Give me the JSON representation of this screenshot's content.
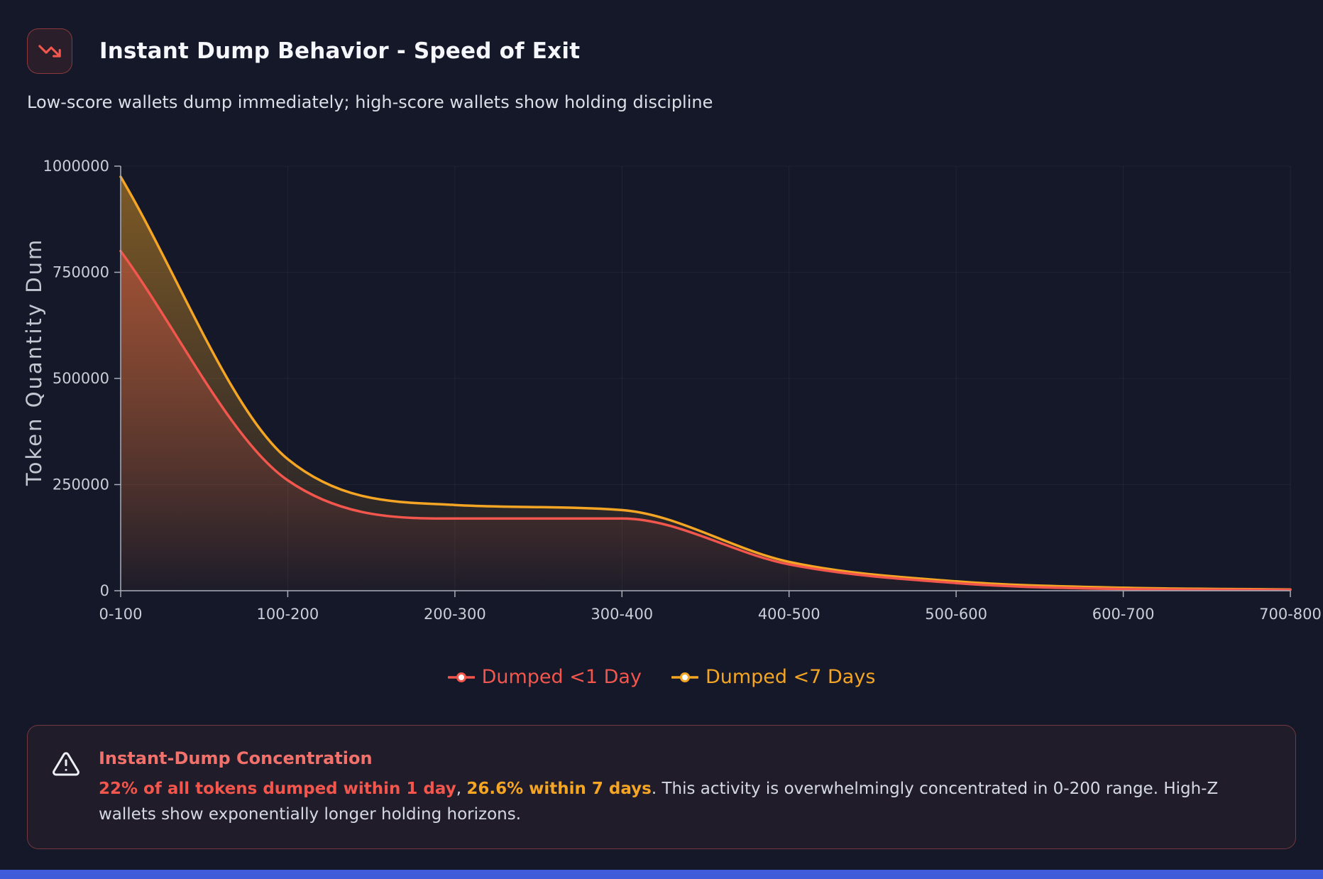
{
  "header": {
    "title": "Instant Dump Behavior - Speed of Exit",
    "subtitle": "Low-score wallets dump immediately; high-score wallets show holding discipline",
    "icon": "trending-down-icon"
  },
  "chart_data": {
    "type": "area",
    "title": "Instant Dump Behavior - Speed of Exit",
    "categories": [
      "0-100",
      "100-200",
      "200-300",
      "300-400",
      "400-500",
      "500-600",
      "600-700",
      "700-800"
    ],
    "xlabel": "",
    "ylabel": "Token Quantity Dum",
    "ylim": [
      0,
      1000000
    ],
    "y_ticks": [
      0,
      250000,
      500000,
      750000,
      1000000
    ],
    "grid": true,
    "legend_position": "bottom",
    "series": [
      {
        "name": "Dumped <1 Day",
        "color": "#f2564c",
        "values": [
          800000,
          260000,
          170000,
          170000,
          62000,
          18000,
          4000,
          2000
        ]
      },
      {
        "name": "Dumped <7 Days",
        "color": "#f5a524",
        "values": [
          975000,
          310000,
          202000,
          190000,
          68000,
          22000,
          7000,
          3000
        ]
      }
    ]
  },
  "alert": {
    "icon": "warning-triangle-icon",
    "title": "Instant-Dump Concentration",
    "segments": [
      {
        "text": "22% of all tokens dumped within 1 day",
        "style": "red-bold"
      },
      {
        "text": ", ",
        "style": "normal"
      },
      {
        "text": "26.6% within 7 days",
        "style": "orange-bold"
      },
      {
        "text": ". This activity is overwhelmingly concentrated in 0-200 range. High-Z wallets show exponentially longer holding horizons.",
        "style": "normal"
      }
    ]
  },
  "colors": {
    "background": "#141828",
    "accent_red": "#f2564c",
    "accent_orange": "#f5a524",
    "bottom_bar": "#3f5bd9",
    "alert_title": "#f3716b",
    "axis": "#a9aeb9",
    "tick_text": "#c9ced8"
  }
}
